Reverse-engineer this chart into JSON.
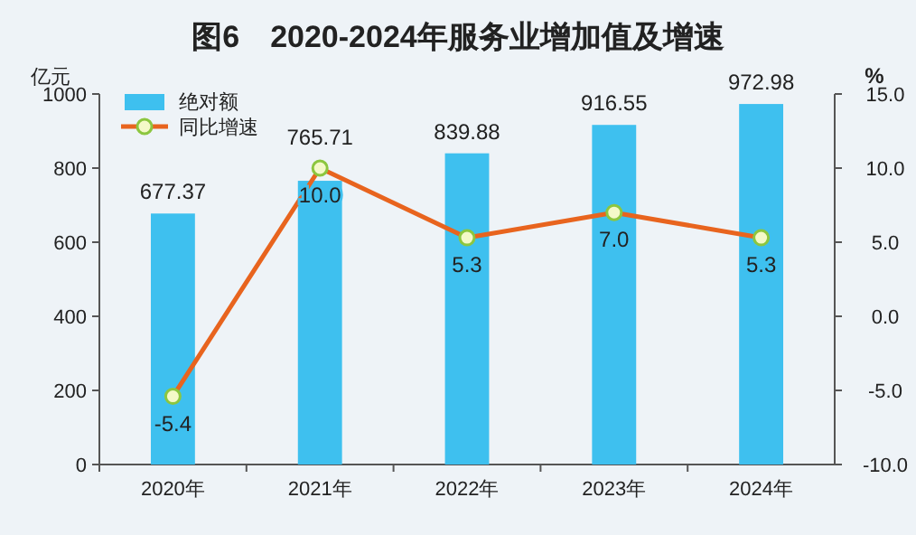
{
  "chart_data": {
    "type": "bar",
    "title": "图6　2020-2024年服务业增加值及增速",
    "ylabel": "亿元",
    "y2label": "%",
    "categories": [
      "2020年",
      "2021年",
      "2022年",
      "2023年",
      "2024年"
    ],
    "series": [
      {
        "name": "绝对额",
        "color": "#3ec0ef",
        "values": [
          677.37,
          765.71,
          839.88,
          916.55,
          972.98
        ]
      },
      {
        "name": "同比增速",
        "type": "line",
        "axis": "y2",
        "color": "#e8641e",
        "values": [
          -5.4,
          10.0,
          5.3,
          7.0,
          5.3
        ],
        "value_labels": [
          "-5.4",
          "10.0",
          "5.3",
          "7.0",
          "5.3"
        ]
      }
    ],
    "data_labels": true,
    "ylim": [
      0,
      1000
    ],
    "yticks": [
      0,
      200,
      400,
      600,
      800,
      1000
    ],
    "y2lim": [
      -10,
      15
    ],
    "y2ticks": [
      {
        "value": -10,
        "label": "-10.0"
      },
      {
        "value": -5,
        "label": "-5.0"
      },
      {
        "value": 0,
        "label": "0.0"
      },
      {
        "value": 5,
        "label": "5.0"
      },
      {
        "value": 10,
        "label": "10.0"
      },
      {
        "value": 15,
        "label": "15.0"
      }
    ],
    "legend": "top left",
    "marker": "circle",
    "grid": false
  }
}
